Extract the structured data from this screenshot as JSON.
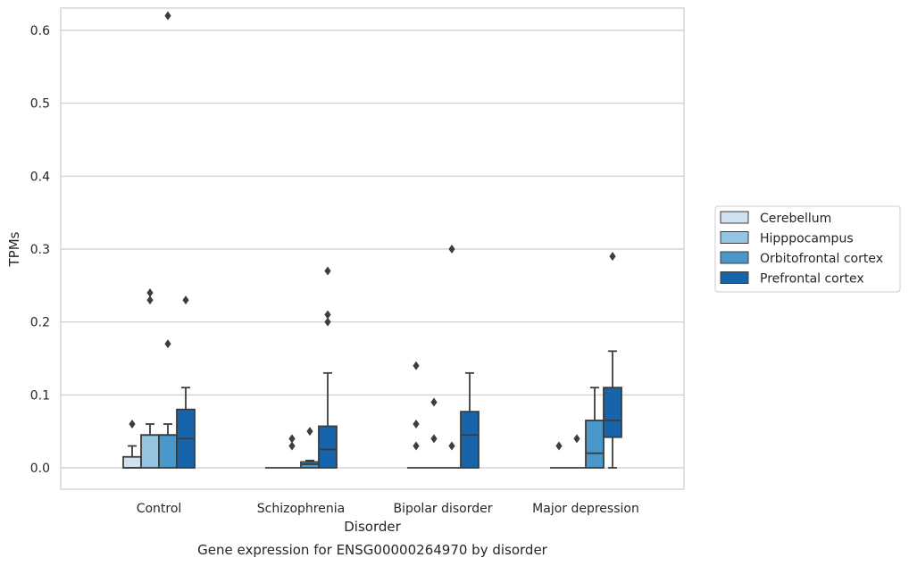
{
  "chart_data": {
    "type": "box",
    "title": "",
    "caption": "Gene expression for ENSG00000264970 by disorder",
    "xlabel": "Disorder",
    "ylabel": "TPMs",
    "ylim": [
      -0.03,
      0.655
    ],
    "yticks": [
      0.0,
      0.1,
      0.2,
      0.3,
      0.4,
      0.5,
      0.6
    ],
    "ytick_labels": [
      "0.0",
      "0.1",
      "0.2",
      "0.3",
      "0.4",
      "0.5",
      "0.6"
    ],
    "grid": "horizontal",
    "legend_position": "right",
    "categories": [
      "Control",
      "Schizophrenia",
      "Bipolar disorder",
      "Major depression"
    ],
    "series": [
      {
        "name": "Cerebellum",
        "color": "#d0e1f2",
        "boxes": [
          {
            "q1": 0.0,
            "median": 0.0,
            "q3": 0.015,
            "whislo": 0.0,
            "whishi": 0.03,
            "fliers": [
              0.06
            ]
          },
          {
            "q1": 0.0,
            "median": 0.0,
            "q3": 0.0,
            "whislo": 0.0,
            "whishi": 0.0,
            "fliers": []
          },
          {
            "q1": 0.0,
            "median": 0.0,
            "q3": 0.0,
            "whislo": 0.0,
            "whishi": 0.0,
            "fliers": [
              0.14,
              0.06,
              0.03
            ]
          },
          {
            "q1": 0.0,
            "median": 0.0,
            "q3": 0.0,
            "whislo": 0.0,
            "whishi": 0.0,
            "fliers": [
              0.03
            ]
          }
        ]
      },
      {
        "name": "Hipppocampus",
        "color": "#94c4df",
        "boxes": [
          {
            "q1": 0.0,
            "median": 0.045,
            "q3": 0.045,
            "whislo": 0.0,
            "whishi": 0.06,
            "fliers": [
              0.24,
              0.23
            ]
          },
          {
            "q1": 0.0,
            "median": 0.0,
            "q3": 0.0,
            "whislo": 0.0,
            "whishi": 0.0,
            "fliers": [
              0.04,
              0.03
            ]
          },
          {
            "q1": 0.0,
            "median": 0.0,
            "q3": 0.0,
            "whislo": 0.0,
            "whishi": 0.0,
            "fliers": [
              0.09,
              0.04
            ]
          },
          {
            "q1": 0.0,
            "median": 0.0,
            "q3": 0.0,
            "whislo": 0.0,
            "whishi": 0.0,
            "fliers": [
              0.04
            ]
          }
        ]
      },
      {
        "name": "Orbitofrontal cortex",
        "color": "#4a98c9",
        "boxes": [
          {
            "q1": 0.0,
            "median": 0.045,
            "q3": 0.045,
            "whislo": 0.0,
            "whishi": 0.06,
            "fliers": [
              0.62,
              0.17
            ]
          },
          {
            "q1": 0.0,
            "median": 0.005,
            "q3": 0.008,
            "whislo": 0.0,
            "whishi": 0.01,
            "fliers": [
              0.05
            ]
          },
          {
            "q1": 0.0,
            "median": 0.0,
            "q3": 0.0,
            "whislo": 0.0,
            "whishi": 0.0,
            "fliers": [
              0.3,
              0.03
            ]
          },
          {
            "q1": 0.0,
            "median": 0.02,
            "q3": 0.065,
            "whislo": 0.0,
            "whishi": 0.11,
            "fliers": []
          }
        ]
      },
      {
        "name": "Prefrontal cortex",
        "color": "#1764ab",
        "boxes": [
          {
            "q1": 0.0,
            "median": 0.04,
            "q3": 0.08,
            "whislo": 0.0,
            "whishi": 0.11,
            "fliers": [
              0.23
            ]
          },
          {
            "q1": 0.0,
            "median": 0.025,
            "q3": 0.057,
            "whislo": 0.0,
            "whishi": 0.13,
            "fliers": [
              0.27,
              0.21,
              0.2
            ]
          },
          {
            "q1": 0.0,
            "median": 0.045,
            "q3": 0.077,
            "whislo": 0.0,
            "whishi": 0.13,
            "fliers": []
          },
          {
            "q1": 0.042,
            "median": 0.065,
            "q3": 0.11,
            "whislo": 0.0,
            "whishi": 0.16,
            "fliers": [
              0.29
            ]
          }
        ]
      }
    ]
  }
}
